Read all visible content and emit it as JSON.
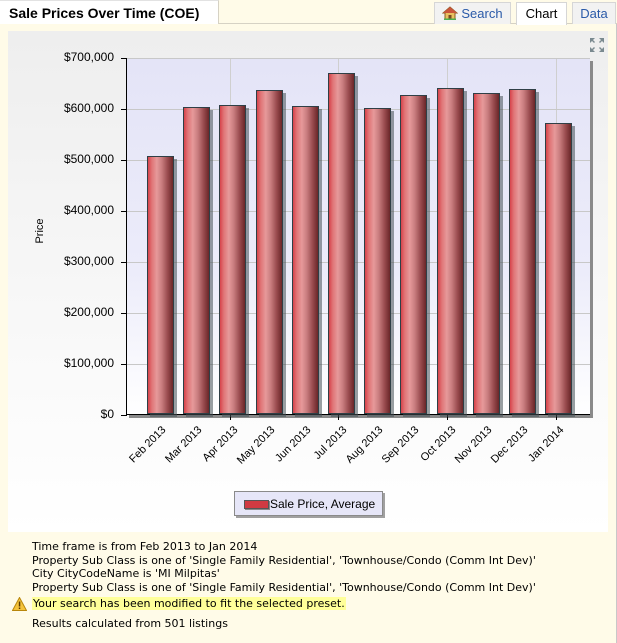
{
  "header": {
    "title": "Sale Prices Over Time (COE)",
    "tabs": [
      {
        "label": "Search",
        "icon": "house-icon",
        "active": false
      },
      {
        "label": "Chart",
        "active": true
      },
      {
        "label": "Data",
        "active": false
      }
    ]
  },
  "chart_data": {
    "type": "bar",
    "title": "",
    "xlabel": "",
    "ylabel": "Price",
    "ylim": [
      0,
      700000
    ],
    "yticks": [
      "$0",
      "$100,000",
      "$200,000",
      "$300,000",
      "$400,000",
      "$500,000",
      "$600,000",
      "$700,000"
    ],
    "categories": [
      "Feb 2013",
      "Mar 2013",
      "Apr 2013",
      "May 2013",
      "Jun 2013",
      "Jul 2013",
      "Aug 2013",
      "Sep 2013",
      "Oct 2013",
      "Nov 2013",
      "Dec 2013",
      "Jan 2014"
    ],
    "series": [
      {
        "name": "Sale Price, Average",
        "color": "#d03a42",
        "values": [
          505000,
          602000,
          606000,
          635000,
          603000,
          668000,
          600000,
          625000,
          640000,
          629000,
          638000,
          570000
        ]
      }
    ],
    "legend": {
      "position": "bottom",
      "entries": [
        "Sale Price, Average"
      ]
    },
    "grid": true
  },
  "footer": {
    "criteria": [
      "Time frame is from Feb 2013 to Jan 2014",
      "Property Sub Class is one of 'Single Family Residential', 'Townhouse/Condo (Comm Int Dev)'",
      "City CityCodeName is 'MI Milpitas'",
      "Property Sub Class is one of 'Single Family Residential', 'Townhouse/Condo (Comm Int Dev)'"
    ],
    "warning": "Your search has been modified to fit the selected preset.",
    "results": "Results calculated from 501 listings"
  },
  "colors": {
    "page_bg": "#fffbe8",
    "tab_link": "#2a5aa8",
    "bar": "#d03a42",
    "plot_bg": "#e4e4f7",
    "highlight": "#ffff99"
  }
}
